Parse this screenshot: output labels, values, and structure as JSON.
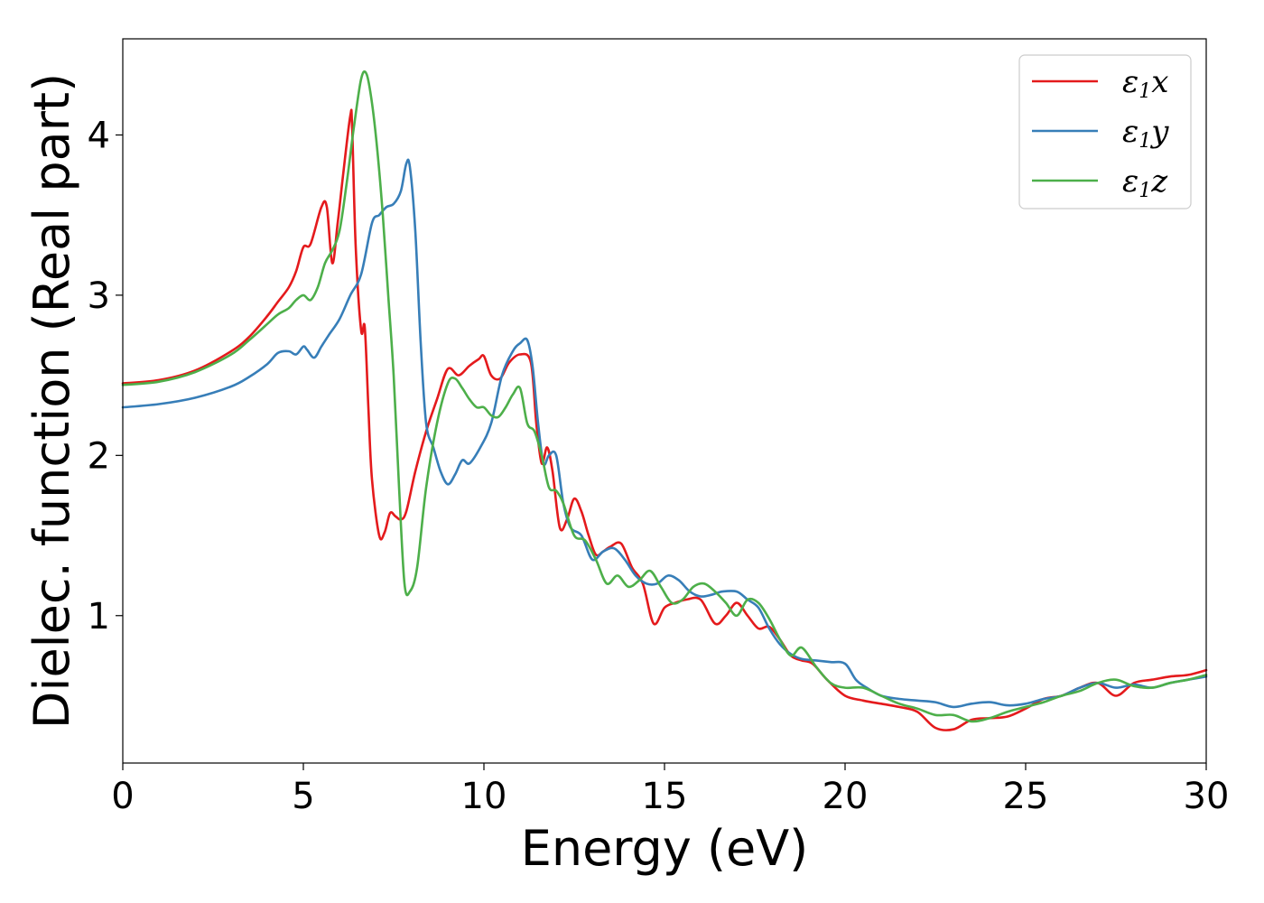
{
  "chart_data": {
    "type": "line",
    "title": "",
    "xlabel": "Energy (eV)",
    "ylabel": "Dielec. function (Real part)",
    "xlim": [
      0,
      30
    ],
    "ylim": [
      0.08,
      4.6
    ],
    "xticks": [
      0,
      5,
      10,
      15,
      20,
      25,
      30
    ],
    "yticks": [
      1,
      2,
      3,
      4
    ],
    "grid": false,
    "legend_position": "top-right",
    "series": [
      {
        "name": "ε1x",
        "legend_symbol": "ε",
        "legend_subscript": "1",
        "legend_suffix": "x",
        "color": "#e41a1c",
        "x": [
          0,
          1,
          2,
          3,
          3.5,
          4,
          4.3,
          4.6,
          4.8,
          5,
          5.2,
          5.5,
          5.65,
          5.8,
          5.95,
          6.1,
          6.3,
          6.35,
          6.45,
          6.6,
          6.7,
          6.8,
          6.9,
          7.1,
          7.25,
          7.4,
          7.55,
          7.7,
          7.85,
          8.1,
          8.4,
          8.7,
          9,
          9.3,
          9.6,
          9.85,
          10,
          10.2,
          10.45,
          10.7,
          11,
          11.3,
          11.45,
          11.6,
          11.75,
          11.9,
          12.1,
          12.3,
          12.5,
          12.7,
          12.9,
          13.1,
          13.3,
          13.5,
          13.8,
          14.1,
          14.4,
          14.7,
          15,
          15.3,
          15.6,
          16,
          16.4,
          16.7,
          17,
          17.3,
          17.6,
          17.9,
          18.2,
          18.5,
          18.8,
          19.1,
          19.5,
          20,
          20.5,
          21,
          21.5,
          22,
          22.5,
          23,
          23.5,
          24,
          24.5,
          25,
          25.5,
          26,
          26.5,
          27,
          27.5,
          28,
          28.5,
          29,
          29.5,
          30
        ],
        "y": [
          2.45,
          2.47,
          2.53,
          2.65,
          2.74,
          2.87,
          2.96,
          3.05,
          3.15,
          3.3,
          3.32,
          3.55,
          3.55,
          3.2,
          3.45,
          3.75,
          4.12,
          4.05,
          3.3,
          2.78,
          2.8,
          2.3,
          1.85,
          1.5,
          1.52,
          1.64,
          1.62,
          1.6,
          1.65,
          1.9,
          2.15,
          2.35,
          2.54,
          2.5,
          2.56,
          2.6,
          2.62,
          2.5,
          2.48,
          2.58,
          2.63,
          2.58,
          2.2,
          1.95,
          2.05,
          1.9,
          1.55,
          1.6,
          1.73,
          1.65,
          1.5,
          1.38,
          1.4,
          1.43,
          1.45,
          1.3,
          1.2,
          0.95,
          1.05,
          1.08,
          1.1,
          1.1,
          0.95,
          1.0,
          1.08,
          1.0,
          0.92,
          0.93,
          0.85,
          0.75,
          0.72,
          0.7,
          0.6,
          0.5,
          0.47,
          0.45,
          0.43,
          0.4,
          0.3,
          0.29,
          0.35,
          0.36,
          0.37,
          0.42,
          0.48,
          0.5,
          0.55,
          0.58,
          0.5,
          0.58,
          0.6,
          0.62,
          0.63,
          0.66
        ]
      },
      {
        "name": "ε1y",
        "legend_symbol": "ε",
        "legend_subscript": "1",
        "legend_suffix": "y",
        "color": "#377eb8",
        "x": [
          0,
          1,
          2,
          3,
          3.5,
          4,
          4.3,
          4.6,
          4.8,
          5,
          5.1,
          5.3,
          5.5,
          5.7,
          6,
          6.3,
          6.6,
          6.9,
          7.1,
          7.3,
          7.5,
          7.7,
          7.85,
          7.95,
          8.1,
          8.25,
          8.4,
          8.6,
          8.8,
          9,
          9.2,
          9.4,
          9.6,
          9.9,
          10.2,
          10.5,
          10.8,
          11,
          11.2,
          11.35,
          11.5,
          11.65,
          11.8,
          12,
          12.2,
          12.4,
          12.7,
          13,
          13.3,
          13.6,
          13.9,
          14.2,
          14.5,
          14.8,
          15.1,
          15.4,
          15.7,
          16,
          16.3,
          16.6,
          17,
          17.3,
          17.6,
          17.9,
          18.2,
          18.5,
          18.8,
          19.2,
          19.6,
          20,
          20.3,
          20.6,
          21,
          21.5,
          22,
          22.5,
          23,
          23.5,
          24,
          24.5,
          25,
          25.5,
          26,
          26.5,
          27,
          27.5,
          28,
          28.5,
          29,
          29.5,
          30
        ],
        "y": [
          2.3,
          2.32,
          2.36,
          2.43,
          2.49,
          2.57,
          2.64,
          2.65,
          2.63,
          2.68,
          2.66,
          2.61,
          2.68,
          2.75,
          2.85,
          3.0,
          3.13,
          3.45,
          3.5,
          3.55,
          3.57,
          3.65,
          3.82,
          3.8,
          3.4,
          2.7,
          2.2,
          2.05,
          1.9,
          1.82,
          1.88,
          1.97,
          1.95,
          2.05,
          2.2,
          2.5,
          2.65,
          2.7,
          2.72,
          2.55,
          2.2,
          1.95,
          2.0,
          2.0,
          1.7,
          1.55,
          1.5,
          1.35,
          1.4,
          1.42,
          1.35,
          1.25,
          1.2,
          1.2,
          1.25,
          1.22,
          1.15,
          1.12,
          1.13,
          1.15,
          1.15,
          1.1,
          1.05,
          0.92,
          0.82,
          0.76,
          0.73,
          0.72,
          0.71,
          0.7,
          0.6,
          0.55,
          0.5,
          0.48,
          0.47,
          0.46,
          0.43,
          0.45,
          0.46,
          0.44,
          0.45,
          0.48,
          0.5,
          0.55,
          0.58,
          0.55,
          0.57,
          0.55,
          0.58,
          0.6,
          0.62
        ]
      },
      {
        "name": "ε1z",
        "legend_symbol": "ε",
        "legend_subscript": "1",
        "legend_suffix": "z",
        "color": "#4daf4a",
        "x": [
          0,
          1,
          2,
          3,
          3.5,
          4,
          4.3,
          4.6,
          4.8,
          5,
          5.2,
          5.4,
          5.6,
          5.8,
          6,
          6.2,
          6.4,
          6.6,
          6.75,
          6.9,
          7.05,
          7.2,
          7.35,
          7.5,
          7.65,
          7.8,
          7.95,
          8.15,
          8.4,
          8.7,
          9,
          9.2,
          9.4,
          9.6,
          9.8,
          10,
          10.2,
          10.4,
          10.6,
          10.8,
          11,
          11.2,
          11.4,
          11.6,
          11.8,
          12,
          12.2,
          12.5,
          12.8,
          13.1,
          13.4,
          13.7,
          14,
          14.3,
          14.6,
          14.9,
          15.2,
          15.5,
          15.8,
          16.1,
          16.4,
          16.7,
          17,
          17.3,
          17.6,
          17.9,
          18.2,
          18.5,
          18.8,
          19.2,
          19.6,
          20,
          20.5,
          21,
          21.5,
          22,
          22.5,
          23,
          23.5,
          24,
          24.5,
          25,
          25.5,
          26,
          26.5,
          27,
          27.5,
          28,
          28.5,
          29,
          29.5,
          30
        ],
        "y": [
          2.44,
          2.46,
          2.52,
          2.63,
          2.72,
          2.82,
          2.88,
          2.92,
          2.97,
          3.0,
          2.97,
          3.05,
          3.2,
          3.28,
          3.4,
          3.7,
          4.05,
          4.35,
          4.38,
          4.2,
          3.9,
          3.5,
          3.0,
          2.5,
          1.8,
          1.2,
          1.15,
          1.3,
          1.8,
          2.2,
          2.45,
          2.48,
          2.42,
          2.35,
          2.3,
          2.3,
          2.25,
          2.24,
          2.3,
          2.38,
          2.42,
          2.2,
          2.15,
          2.0,
          1.8,
          1.78,
          1.7,
          1.5,
          1.47,
          1.35,
          1.2,
          1.25,
          1.18,
          1.22,
          1.28,
          1.18,
          1.08,
          1.1,
          1.18,
          1.2,
          1.15,
          1.08,
          1.0,
          1.1,
          1.08,
          0.98,
          0.85,
          0.75,
          0.8,
          0.68,
          0.58,
          0.55,
          0.55,
          0.5,
          0.45,
          0.42,
          0.38,
          0.38,
          0.34,
          0.36,
          0.4,
          0.43,
          0.46,
          0.5,
          0.53,
          0.58,
          0.6,
          0.56,
          0.55,
          0.58,
          0.6,
          0.63
        ]
      }
    ]
  }
}
